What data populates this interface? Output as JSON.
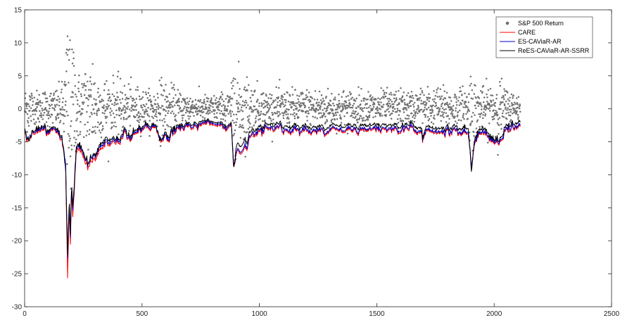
{
  "chart_data": {
    "type": "scatter+line",
    "title": "",
    "xlabel": "",
    "ylabel": "",
    "xlim": [
      0,
      2500
    ],
    "ylim": [
      -30,
      15
    ],
    "xticks": [
      0,
      500,
      1000,
      1500,
      2000,
      2500
    ],
    "yticks": [
      -30,
      -25,
      -20,
      -15,
      -10,
      -5,
      0,
      5,
      10,
      15
    ],
    "grid": false,
    "legend_position": "top-right",
    "n_points": 2111,
    "series": [
      {
        "name": "S&P 500 Return",
        "kind": "scatter",
        "color": "#707070",
        "note_values": "daily returns, mostly in [-3, 3]; extremes",
        "extremes": [
          [
            183,
            11.0
          ],
          [
            193,
            10.4
          ],
          [
            210,
            6.5
          ],
          [
            290,
            6.8
          ],
          [
            575,
            4.3
          ],
          [
            890,
            4.6
          ],
          [
            897,
            4.5
          ],
          [
            1902,
            3.8
          ],
          [
            195,
            -7.2
          ],
          [
            188,
            -5.9
          ]
        ]
      },
      {
        "name": "CARE",
        "kind": "line",
        "color": "#ff0000",
        "keypoints": [
          [
            0,
            -3.5
          ],
          [
            20,
            -4.8
          ],
          [
            40,
            -3.2
          ],
          [
            60,
            -3.0
          ],
          [
            80,
            -3.5
          ],
          [
            100,
            -3.2
          ],
          [
            120,
            -3.6
          ],
          [
            140,
            -3.5
          ],
          [
            160,
            -4.5
          ],
          [
            175,
            -9.0
          ],
          [
            183,
            -26.0
          ],
          [
            190,
            -15.0
          ],
          [
            195,
            -20.0
          ],
          [
            200,
            -12.0
          ],
          [
            205,
            -16.0
          ],
          [
            212,
            -12.0
          ],
          [
            220,
            -7.0
          ],
          [
            235,
            -6.0
          ],
          [
            250,
            -7.5
          ],
          [
            270,
            -9.0
          ],
          [
            300,
            -7.5
          ],
          [
            330,
            -6.0
          ],
          [
            360,
            -5.5
          ],
          [
            400,
            -4.8
          ],
          [
            450,
            -4.0
          ],
          [
            500,
            -3.5
          ],
          [
            530,
            -3.0
          ],
          [
            560,
            -3.0
          ],
          [
            575,
            -5.5
          ],
          [
            590,
            -4.5
          ],
          [
            620,
            -4.0
          ],
          [
            660,
            -3.2
          ],
          [
            700,
            -2.8
          ],
          [
            750,
            -2.3
          ],
          [
            800,
            -2.2
          ],
          [
            850,
            -2.8
          ],
          [
            880,
            -3.0
          ],
          [
            890,
            -10.0
          ],
          [
            900,
            -7.0
          ],
          [
            930,
            -6.8
          ],
          [
            960,
            -5.0
          ],
          [
            1000,
            -3.8
          ],
          [
            1050,
            -3.0
          ],
          [
            1100,
            -3.3
          ],
          [
            1150,
            -3.2
          ],
          [
            1200,
            -3.4
          ],
          [
            1250,
            -3.5
          ],
          [
            1300,
            -3.2
          ],
          [
            1350,
            -3.3
          ],
          [
            1400,
            -3.1
          ],
          [
            1450,
            -3.2
          ],
          [
            1500,
            -3.0
          ],
          [
            1550,
            -3.1
          ],
          [
            1600,
            -3.2
          ],
          [
            1650,
            -3.0
          ],
          [
            1690,
            -3.5
          ],
          [
            1695,
            -5.0
          ],
          [
            1710,
            -3.5
          ],
          [
            1750,
            -3.8
          ],
          [
            1800,
            -3.5
          ],
          [
            1850,
            -3.5
          ],
          [
            1890,
            -3.8
          ],
          [
            1903,
            -9.0
          ],
          [
            1915,
            -5.0
          ],
          [
            1950,
            -3.5
          ],
          [
            2000,
            -5.0
          ],
          [
            2020,
            -5.5
          ],
          [
            2050,
            -3.5
          ],
          [
            2080,
            -3.0
          ],
          [
            2110,
            -2.8
          ]
        ]
      },
      {
        "name": "ES-CAViaR-AR",
        "kind": "line",
        "color": "#0000cc",
        "keypoints": [
          [
            0,
            -3.2
          ],
          [
            20,
            -4.5
          ],
          [
            40,
            -3.0
          ],
          [
            60,
            -2.8
          ],
          [
            80,
            -3.3
          ],
          [
            100,
            -3.0
          ],
          [
            120,
            -3.4
          ],
          [
            140,
            -3.3
          ],
          [
            160,
            -4.2
          ],
          [
            175,
            -8.5
          ],
          [
            183,
            -23.0
          ],
          [
            190,
            -14.5
          ],
          [
            195,
            -19.0
          ],
          [
            200,
            -11.5
          ],
          [
            205,
            -15.0
          ],
          [
            212,
            -11.5
          ],
          [
            220,
            -6.5
          ],
          [
            235,
            -5.6
          ],
          [
            250,
            -7.0
          ],
          [
            270,
            -8.5
          ],
          [
            300,
            -7.0
          ],
          [
            330,
            -5.6
          ],
          [
            360,
            -5.2
          ],
          [
            400,
            -4.5
          ],
          [
            450,
            -3.8
          ],
          [
            500,
            -3.3
          ],
          [
            530,
            -2.8
          ],
          [
            560,
            -2.8
          ],
          [
            575,
            -5.2
          ],
          [
            590,
            -4.3
          ],
          [
            620,
            -3.8
          ],
          [
            660,
            -3.0
          ],
          [
            700,
            -2.6
          ],
          [
            750,
            -2.1
          ],
          [
            800,
            -2.0
          ],
          [
            850,
            -2.6
          ],
          [
            880,
            -2.8
          ],
          [
            890,
            -9.8
          ],
          [
            900,
            -6.8
          ],
          [
            930,
            -6.5
          ],
          [
            960,
            -4.8
          ],
          [
            1000,
            -3.5
          ],
          [
            1050,
            -2.8
          ],
          [
            1100,
            -3.1
          ],
          [
            1150,
            -3.0
          ],
          [
            1200,
            -3.2
          ],
          [
            1250,
            -3.3
          ],
          [
            1300,
            -3.0
          ],
          [
            1350,
            -3.1
          ],
          [
            1400,
            -2.9
          ],
          [
            1450,
            -3.0
          ],
          [
            1500,
            -2.8
          ],
          [
            1550,
            -2.9
          ],
          [
            1600,
            -3.0
          ],
          [
            1650,
            -2.8
          ],
          [
            1690,
            -3.3
          ],
          [
            1695,
            -4.8
          ],
          [
            1710,
            -3.3
          ],
          [
            1750,
            -3.6
          ],
          [
            1800,
            -3.3
          ],
          [
            1850,
            -3.3
          ],
          [
            1890,
            -3.6
          ],
          [
            1903,
            -8.8
          ],
          [
            1915,
            -4.8
          ],
          [
            1950,
            -3.3
          ],
          [
            2000,
            -4.8
          ],
          [
            2020,
            -5.3
          ],
          [
            2050,
            -3.3
          ],
          [
            2080,
            -2.8
          ],
          [
            2110,
            -2.6
          ]
        ]
      },
      {
        "name": "ReES-CAViaR-AR-SSRR",
        "kind": "line",
        "color": "#000000",
        "keypoints": [
          [
            0,
            -3.0
          ],
          [
            20,
            -4.8
          ],
          [
            40,
            -2.8
          ],
          [
            60,
            -2.6
          ],
          [
            80,
            -3.0
          ],
          [
            100,
            -2.8
          ],
          [
            120,
            -3.2
          ],
          [
            140,
            -3.0
          ],
          [
            160,
            -4.0
          ],
          [
            175,
            -9.5
          ],
          [
            183,
            -22.5
          ],
          [
            190,
            -13.5
          ],
          [
            195,
            -18.5
          ],
          [
            200,
            -11.0
          ],
          [
            205,
            -14.5
          ],
          [
            212,
            -11.0
          ],
          [
            220,
            -6.2
          ],
          [
            235,
            -5.4
          ],
          [
            250,
            -6.8
          ],
          [
            270,
            -8.3
          ],
          [
            300,
            -6.8
          ],
          [
            330,
            -5.2
          ],
          [
            360,
            -4.8
          ],
          [
            400,
            -4.2
          ],
          [
            450,
            -3.5
          ],
          [
            500,
            -3.0
          ],
          [
            530,
            -2.5
          ],
          [
            560,
            -2.6
          ],
          [
            575,
            -5.5
          ],
          [
            590,
            -4.0
          ],
          [
            620,
            -3.5
          ],
          [
            660,
            -2.7
          ],
          [
            700,
            -2.3
          ],
          [
            750,
            -1.8
          ],
          [
            800,
            -1.8
          ],
          [
            850,
            -2.3
          ],
          [
            880,
            -2.6
          ],
          [
            890,
            -10.5
          ],
          [
            900,
            -6.0
          ],
          [
            930,
            -5.6
          ],
          [
            960,
            -4.2
          ],
          [
            1000,
            -3.0
          ],
          [
            1050,
            -2.3
          ],
          [
            1100,
            -2.6
          ],
          [
            1150,
            -2.5
          ],
          [
            1200,
            -2.7
          ],
          [
            1250,
            -2.8
          ],
          [
            1300,
            -2.5
          ],
          [
            1350,
            -2.6
          ],
          [
            1400,
            -2.4
          ],
          [
            1450,
            -2.5
          ],
          [
            1500,
            -2.3
          ],
          [
            1550,
            -2.4
          ],
          [
            1600,
            -2.5
          ],
          [
            1650,
            -2.3
          ],
          [
            1690,
            -2.8
          ],
          [
            1695,
            -4.6
          ],
          [
            1710,
            -2.8
          ],
          [
            1750,
            -3.1
          ],
          [
            1800,
            -2.8
          ],
          [
            1850,
            -2.8
          ],
          [
            1890,
            -3.0
          ],
          [
            1903,
            -9.6
          ],
          [
            1915,
            -4.4
          ],
          [
            1950,
            -2.8
          ],
          [
            2000,
            -4.5
          ],
          [
            2020,
            -5.0
          ],
          [
            2050,
            -2.8
          ],
          [
            2080,
            -2.3
          ],
          [
            2110,
            -2.1
          ]
        ]
      }
    ]
  }
}
